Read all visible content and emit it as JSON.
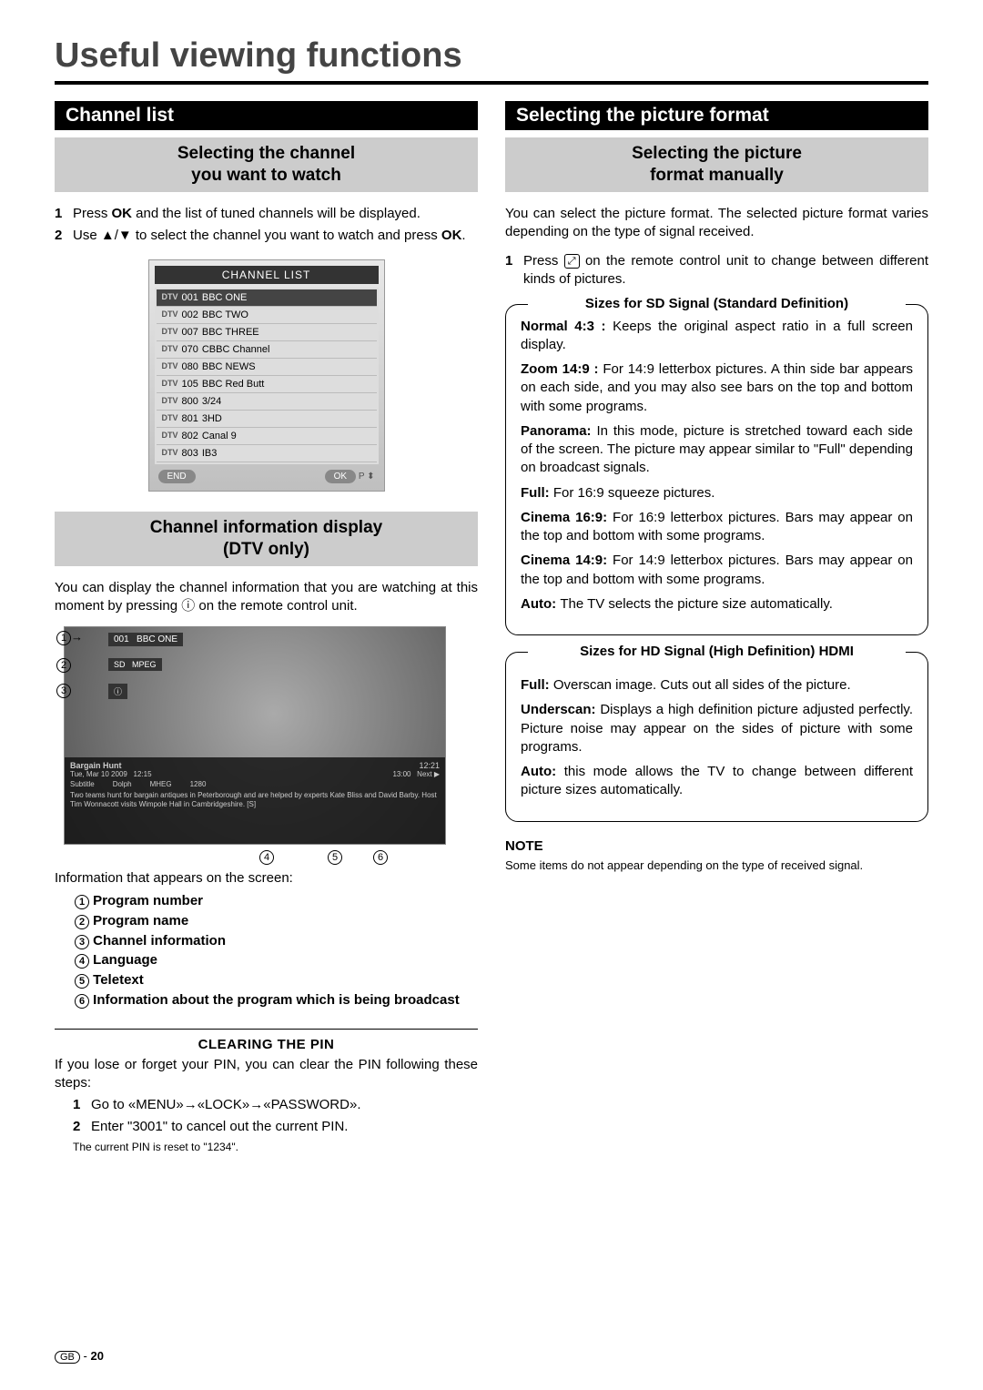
{
  "page_title": "Useful viewing functions",
  "left": {
    "black_header": "Channel list",
    "gray_header": "Selecting the channel\nyou want to watch",
    "steps": [
      {
        "num": "1",
        "text_before": "Press ",
        "bold": "OK",
        "text_after": " and the list of tuned channels will be displayed."
      },
      {
        "num": "2",
        "text_before": "Use ▲/▼ to select the channel you want to watch and press ",
        "bold": "OK",
        "text_after": "."
      }
    ],
    "channel_list": {
      "title": "CHANNEL LIST",
      "items": [
        {
          "dtv": "DTV",
          "num": "001",
          "name": "BBC ONE"
        },
        {
          "dtv": "DTV",
          "num": "002",
          "name": "BBC TWO"
        },
        {
          "dtv": "DTV",
          "num": "007",
          "name": "BBC THREE"
        },
        {
          "dtv": "DTV",
          "num": "070",
          "name": "CBBC Channel"
        },
        {
          "dtv": "DTV",
          "num": "080",
          "name": "BBC NEWS"
        },
        {
          "dtv": "DTV",
          "num": "105",
          "name": "BBC Red Butt"
        },
        {
          "dtv": "DTV",
          "num": "800",
          "name": "3/24"
        },
        {
          "dtv": "DTV",
          "num": "801",
          "name": "3HD"
        },
        {
          "dtv": "DTV",
          "num": "802",
          "name": "Canal 9"
        },
        {
          "dtv": "DTV",
          "num": "803",
          "name": "IB3"
        }
      ],
      "end_btn": "END",
      "ok_btn": "OK"
    },
    "gray_header2": "Channel information display\n(DTV only)",
    "info_intro": "You can display the channel information that you are watching at this moment by pressing ⓘ on the remote control unit.",
    "info_caption": "Information that appears on the screen:",
    "info_items": [
      "Program number",
      "Program name",
      "Channel information",
      "Language",
      "Teletext",
      "Information about the program which is being broadcast"
    ],
    "clearing_title": "CLEARING THE PIN",
    "clearing_intro": "If you lose or forget your PIN, you can clear the PIN following these steps:",
    "clearing_steps": [
      {
        "num": "1",
        "text": "Go to «MENU»→«LOCK»→«PASSWORD»."
      },
      {
        "num": "2",
        "text": "Enter \"3001\" to cancel out the current PIN."
      }
    ],
    "clearing_note": "The current PIN is reset to \"1234\"."
  },
  "right": {
    "black_header": "Selecting the picture format",
    "gray_header": "Selecting the picture\nformat manually",
    "intro": "You can select the picture format. The selected picture format varies depending on the type of signal received.",
    "step1_before": "Press ",
    "step1_after": " on the remote control unit to change between different kinds of pictures.",
    "sd_box": {
      "title": "Sizes for SD Signal (Standard Definition)",
      "items": [
        {
          "b": "Normal 4:3 : ",
          "t": "Keeps the original aspect ratio in a full screen display."
        },
        {
          "b": "Zoom 14:9 : ",
          "t": "For 14:9 letterbox pictures. A thin side bar appears on each side, and you may also see bars on the top and bottom with some programs."
        },
        {
          "b": "Panorama: ",
          "t": "In this mode, picture is stretched toward each side of the screen. The picture may appear similar to \"Full\" depending on broadcast signals."
        },
        {
          "b": "Full: ",
          "t": "For 16:9 squeeze pictures."
        },
        {
          "b": "Cinema 16:9: ",
          "t": "For 16:9 letterbox pictures. Bars may appear on the top and bottom with some programs."
        },
        {
          "b": "Cinema 14:9: ",
          "t": "For 14:9 letterbox pictures. Bars may appear on the top and bottom with some programs."
        },
        {
          "b": "Auto: ",
          "t": "The TV selects the picture size automatically."
        }
      ]
    },
    "hd_box": {
      "title": "Sizes for HD Signal (High Definition) HDMI",
      "items": [
        {
          "b": "Full: ",
          "t": "Overscan image. Cuts out all sides of the picture."
        },
        {
          "b": "Underscan: ",
          "t": "Displays a high definition picture adjusted perfectly. Picture noise may appear on the sides of picture with some programs."
        },
        {
          "b": "Auto: ",
          "t": "this mode allows the TV to change between different picture sizes automatically."
        }
      ]
    },
    "note_hd": "NOTE",
    "note_txt": "Some items do not appear depending on the type of received signal."
  },
  "footer": {
    "region": "GB",
    "dash": "-",
    "page": "20"
  }
}
